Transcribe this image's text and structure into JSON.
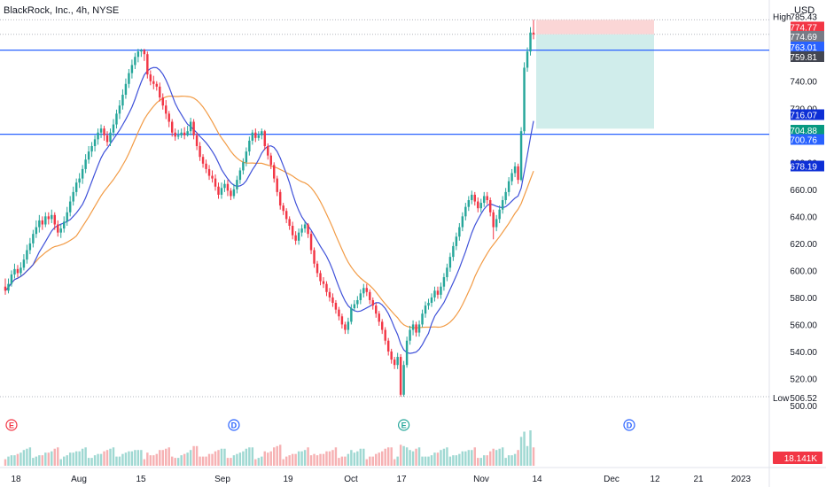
{
  "header": {
    "title": "BlackRock, Inc., 4h, NYSE",
    "currency": "USD"
  },
  "colors": {
    "up": "#26a69a",
    "down": "#f23645",
    "ma_fast": "#3f51d9",
    "ma_slow": "#f29b45",
    "level_line": "#2962ff",
    "stop_zone": "#fbd2d2",
    "target_zone": "#cdecea",
    "vol_up": "#9fd8d2",
    "vol_down": "#f6b1b3"
  },
  "chart_data": {
    "type": "candlestick",
    "title": "BlackRock, Inc., 4h, NYSE",
    "ylim": [
      500,
      787
    ],
    "price_axis_ticks": [
      "520.00",
      "540.00",
      "560.00",
      "580.00",
      "600.00",
      "620.00",
      "640.00",
      "660.00",
      "680.00",
      "700.00",
      "720.00",
      "740.00"
    ],
    "time_axis_labels": [
      "18",
      "Aug",
      "15",
      "Sep",
      "19",
      "Oct",
      "17",
      "Nov",
      "14",
      "Dec",
      "12",
      "21",
      "2023"
    ],
    "scale_labels": [
      {
        "text": "High",
        "value": "785.43",
        "kind": "plain"
      },
      {
        "text": "",
        "value": "774.77",
        "kind": "red"
      },
      {
        "text": "",
        "value": "774.69",
        "kind": "gray"
      },
      {
        "text": "",
        "value": "763.01",
        "kind": "blue"
      },
      {
        "text": "",
        "value": "759.81",
        "kind": "dark"
      },
      {
        "text": "",
        "value": "716.07",
        "kind": "navy"
      },
      {
        "text": "",
        "value": "704.88",
        "kind": "green"
      },
      {
        "text": "",
        "value": "700.76",
        "kind": "blue"
      },
      {
        "text": "",
        "value": "678.19",
        "kind": "navy"
      },
      {
        "text": "Low",
        "value": "506.52",
        "kind": "plain"
      }
    ],
    "horizontal_levels": [
      763.01,
      700.76
    ],
    "high": 785.43,
    "low": 506.52,
    "volume_label": "18.141K",
    "position_tool": {
      "entry": 774.69,
      "stop": 785.43,
      "target": 704.88
    },
    "events": [
      {
        "letter": "E",
        "kind": "earnings"
      },
      {
        "letter": "D",
        "kind": "dividend"
      },
      {
        "letter": "E",
        "kind": "earnings"
      },
      {
        "letter": "D",
        "kind": "dividend"
      }
    ],
    "candles": [],
    "ma_fast": [],
    "ma_slow": [],
    "volume": []
  }
}
